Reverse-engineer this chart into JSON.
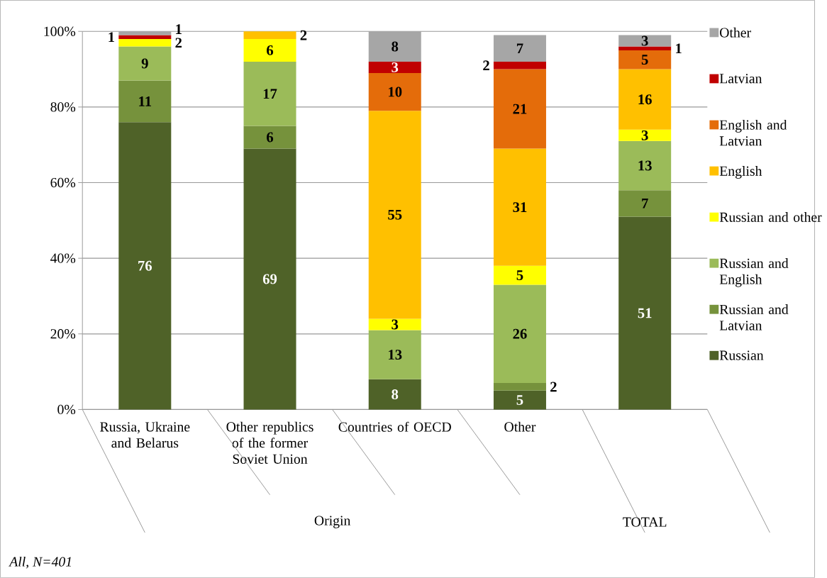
{
  "chart_data": {
    "type": "bar",
    "stacked": true,
    "categories": [
      "Russia, Ukraine and Belarus",
      "Other republics of the former Soviet Union",
      "Countries of OECD",
      "Other",
      null
    ],
    "series": [
      {
        "name": "Russian",
        "color": "#4f6228",
        "values": [
          76,
          69,
          8,
          5,
          51
        ]
      },
      {
        "name": "Russian and Latvian",
        "color": "#76923c",
        "values": [
          11,
          6,
          null,
          2,
          7
        ]
      },
      {
        "name": "Russian and English",
        "color": "#9bbb59",
        "values": [
          9,
          17,
          13,
          26,
          13
        ]
      },
      {
        "name": "Russian and other",
        "color": "#ffff00",
        "values": [
          2,
          6,
          3,
          5,
          3
        ]
      },
      {
        "name": "English",
        "color": "#ffc000",
        "values": [
          null,
          2,
          55,
          31,
          16
        ]
      },
      {
        "name": "English and Latvian",
        "color": "#e46c0a",
        "values": [
          null,
          null,
          10,
          21,
          5
        ]
      },
      {
        "name": "Latvian",
        "color": "#c00000",
        "values": [
          1,
          null,
          3,
          2,
          1
        ]
      },
      {
        "name": "Other",
        "color": "#a6a6a6",
        "values": [
          1,
          null,
          8,
          7,
          3
        ]
      }
    ],
    "ylim": [
      0,
      100
    ],
    "yticks": [
      {
        "value": 0,
        "label": "0%"
      },
      {
        "value": 20,
        "label": "20%"
      },
      {
        "value": 40,
        "label": "40%"
      },
      {
        "value": 60,
        "label": "60%"
      },
      {
        "value": 80,
        "label": "80%"
      },
      {
        "value": 100,
        "label": "100%"
      }
    ],
    "grid": "y",
    "legend": "right",
    "data_labels": true,
    "annotations": [
      "Origin",
      "TOTAL",
      "All, N=401"
    ]
  }
}
